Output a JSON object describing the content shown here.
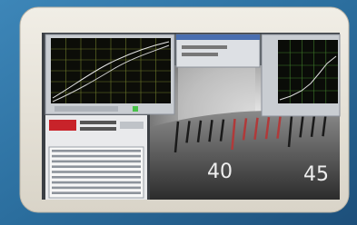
{
  "scale_labels": [
    "40",
    "45"
  ]
}
